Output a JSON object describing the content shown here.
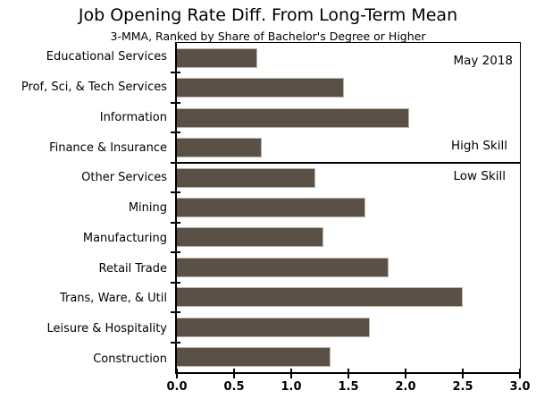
{
  "chart_data": {
    "type": "bar",
    "orientation": "horizontal",
    "title": "Job Opening Rate Diff. From Long-Term Mean",
    "subtitle": "3-MMA, Ranked by Share of Bachelor's Degree or Higher",
    "categories": [
      "Educational Services",
      "Prof, Sci, & Tech Services",
      "Information",
      "Finance & Insurance",
      "Other Services",
      "Mining",
      "Manufacturing",
      "Retail Trade",
      "Trans, Ware, & Util",
      "Leisure & Hospitality",
      "Construction"
    ],
    "values": [
      0.7,
      1.46,
      2.03,
      0.74,
      1.21,
      1.65,
      1.28,
      1.85,
      2.5,
      1.69,
      1.34
    ],
    "xlim": [
      0.0,
      3.0
    ],
    "x_ticks": [
      "0.0",
      "0.5",
      "1.0",
      "1.5",
      "2.0",
      "2.5",
      "3.0"
    ],
    "grid": "off",
    "legend": "none",
    "bar_color": "#5A5045",
    "bar_border_color": "#BDB4AA",
    "axis_color": "#000000",
    "groups": [
      {
        "name": "High Skill",
        "count": 4
      },
      {
        "name": "Low Skill",
        "count": 7
      }
    ],
    "divider_after": 4,
    "annotations": {
      "date_label": "May 2018",
      "high_skill_label": "High Skill",
      "low_skill_label": "Low Skill"
    }
  }
}
